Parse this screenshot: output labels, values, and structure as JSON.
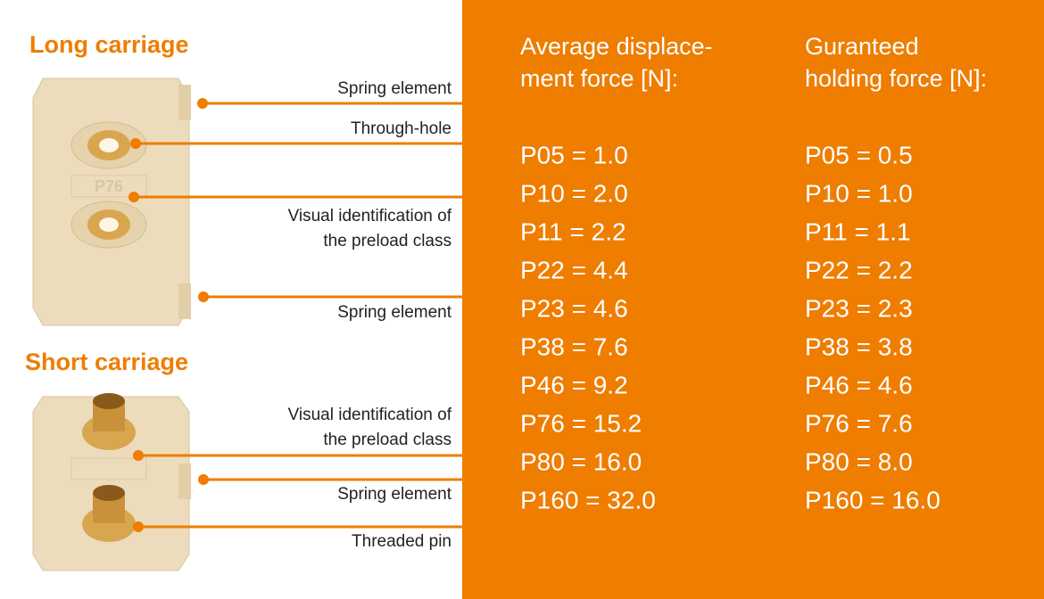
{
  "long_carriage": {
    "title": "Long carriage",
    "labels": [
      [
        "Spring element"
      ],
      [
        "Through-hole"
      ],
      [
        "Visual identification of",
        "the preload class"
      ],
      [
        "Spring element"
      ]
    ]
  },
  "short_carriage": {
    "title": "Short carriage",
    "labels": [
      [
        "Visual identification of",
        "the preload class"
      ],
      [
        "Spring element"
      ],
      [
        "Threaded pin"
      ]
    ]
  },
  "columns": [
    {
      "heading": [
        "Average displace-",
        "ment force [N]:"
      ],
      "rows": [
        "P05 = 1.0",
        "P10 = 2.0",
        "P11 = 2.2",
        "P22 = 4.4",
        "P23 = 4.6",
        "P38 = 7.6",
        "P46 = 9.2",
        "P76 = 15.2",
        "P80 = 16.0",
        "P160 = 32.0"
      ]
    },
    {
      "heading": [
        "Guranteed",
        "holding force [N]:"
      ],
      "rows": [
        "P05 = 0.5",
        "P10 = 1.0",
        "P11 = 1.1",
        "P22 = 2.2",
        "P23 = 2.3",
        "P38 = 3.8",
        "P46 = 4.6",
        "P76 = 7.6",
        "P80 = 8.0",
        "P160 = 16.0"
      ]
    }
  ]
}
